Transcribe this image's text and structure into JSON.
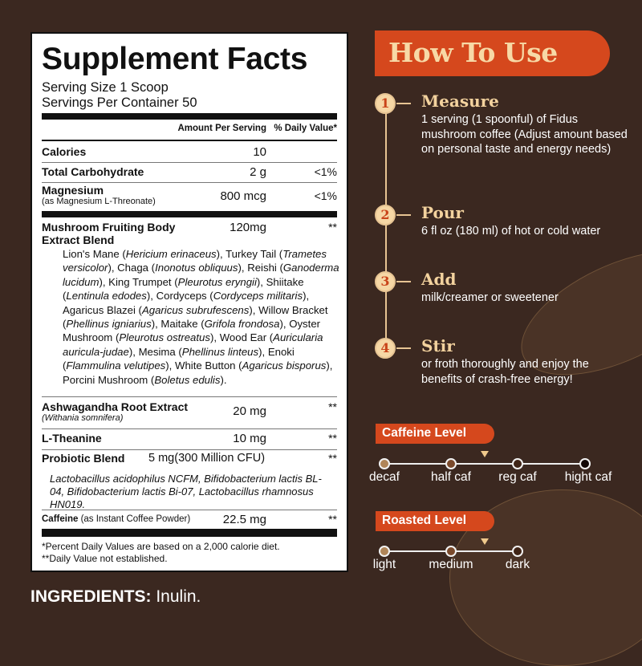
{
  "facts": {
    "title": "Supplement Facts",
    "serving_size": "Serving Size 1 Scoop",
    "servings_per_container": "Servings Per Container 50",
    "col_amount": "Amount Per Serving",
    "col_dv": "% Daily Value*",
    "rows": [
      {
        "name": "Calories",
        "amount": "10",
        "dv": ""
      },
      {
        "name": "Total Carbohydrate",
        "amount": "2 g",
        "dv": "<1%"
      },
      {
        "name": "Magnesium",
        "sub": "(as Magnesium L-Threonate)",
        "amount": "800 mcg",
        "dv": "<1%"
      },
      {
        "name": "Mushroom Fruiting Body",
        "name2": "Extract Blend",
        "amount": "120mg",
        "dv": "**"
      },
      {
        "name": "Ashwagandha Root Extract",
        "sub": "(Withania somnifera)",
        "amount": "20 mg",
        "dv": "**"
      },
      {
        "name": "L-Theanine",
        "amount": "10 mg",
        "dv": "**"
      },
      {
        "name": "Probiotic Blend",
        "amount": "5 mg(300 Million CFU)",
        "dv": "**"
      },
      {
        "name": "Caffeine",
        "sub": " (as Instant Coffee Powder)",
        "amount": "22.5 mg",
        "dv": "**"
      }
    ],
    "mushroom_list": [
      [
        "Lion's Mane (",
        0
      ],
      [
        "Hericium erinaceus",
        1
      ],
      [
        "), Turkey Tail (",
        0
      ],
      [
        "Trametes versicolor",
        1
      ],
      [
        "), Chaga (",
        0
      ],
      [
        "Inonotus obliquus",
        1
      ],
      [
        "), Reishi (",
        0
      ],
      [
        "Ganoderma lucidum",
        1
      ],
      [
        "), King Trumpet (",
        0
      ],
      [
        "Pleurotus eryngii",
        1
      ],
      [
        "), Shiitake (",
        0
      ],
      [
        "Lentinula edodes",
        1
      ],
      [
        "), Cordyceps (",
        0
      ],
      [
        "Cordyceps militaris",
        1
      ],
      [
        "), Agaricus Blazei (",
        0
      ],
      [
        "Agaricus subrufescens",
        1
      ],
      [
        "), Willow Bracket (",
        0
      ],
      [
        "Phellinus igniarius",
        1
      ],
      [
        "), Maitake (",
        0
      ],
      [
        "Grifola frondosa",
        1
      ],
      [
        "), Oyster Mushroom (",
        0
      ],
      [
        "Pleurotus ostreatus",
        1
      ],
      [
        "), Wood Ear (",
        0
      ],
      [
        "Auricularia auricula-judae",
        1
      ],
      [
        "), Mesima (",
        0
      ],
      [
        "Phellinus linteus",
        1
      ],
      [
        "), Enoki (",
        0
      ],
      [
        "Flammulina velutipes",
        1
      ],
      [
        "), White Button (",
        0
      ],
      [
        "Agaricus bisporus",
        1
      ],
      [
        "), Porcini Mushroom (",
        0
      ],
      [
        "Boletus edulis",
        1
      ],
      [
        ").",
        0
      ]
    ],
    "probiotic_list": "Lactobacillus acidophilus NCFM, Bifidobacterium lactis BL-04, Bifidobacterium lactis Bi-07, Lactobacillus rhamnosus HN019.",
    "footnote1": "*Percent Daily Values are based on a 2,000 calorie diet.",
    "footnote2": "**Daily Value not established."
  },
  "ingredients": {
    "label": "INGREDIENTS:",
    "value": " Inulin."
  },
  "how_to_use": {
    "title": "How To Use",
    "steps": [
      {
        "num": "1",
        "heading": "Measure",
        "body": "1 serving (1 spoonful) of Fidus mushroom coffee (Adjust amount based on personal taste and energy needs)"
      },
      {
        "num": "2",
        "heading": "Pour",
        "body": "6 fl oz (180 ml) of hot or cold water"
      },
      {
        "num": "3",
        "heading": "Add",
        "body": "milk/creamer or sweetener"
      },
      {
        "num": "4",
        "heading": "Stir",
        "body": "or froth thoroughly and enjoy the benefits of crash-free energy!"
      }
    ]
  },
  "caffeine_level": {
    "title": "Caffeine Level",
    "levels": [
      "decaf",
      "half caf",
      "reg caf",
      "hight caf"
    ],
    "dot_colors": [
      "#b08558",
      "#7a4a2c",
      "#3f2416",
      "#120806"
    ],
    "marker_between": [
      "half caf",
      "reg caf"
    ]
  },
  "roasted_level": {
    "title": "Roasted Level",
    "levels": [
      "light",
      "medium",
      "dark"
    ],
    "dot_colors": [
      "#b08558",
      "#7a4a2c",
      "#3f2416"
    ],
    "marker_between": [
      "medium",
      "dark"
    ]
  },
  "colors": {
    "background": "#3b2820",
    "accent": "#d5481d",
    "cream": "#f3d29e"
  }
}
